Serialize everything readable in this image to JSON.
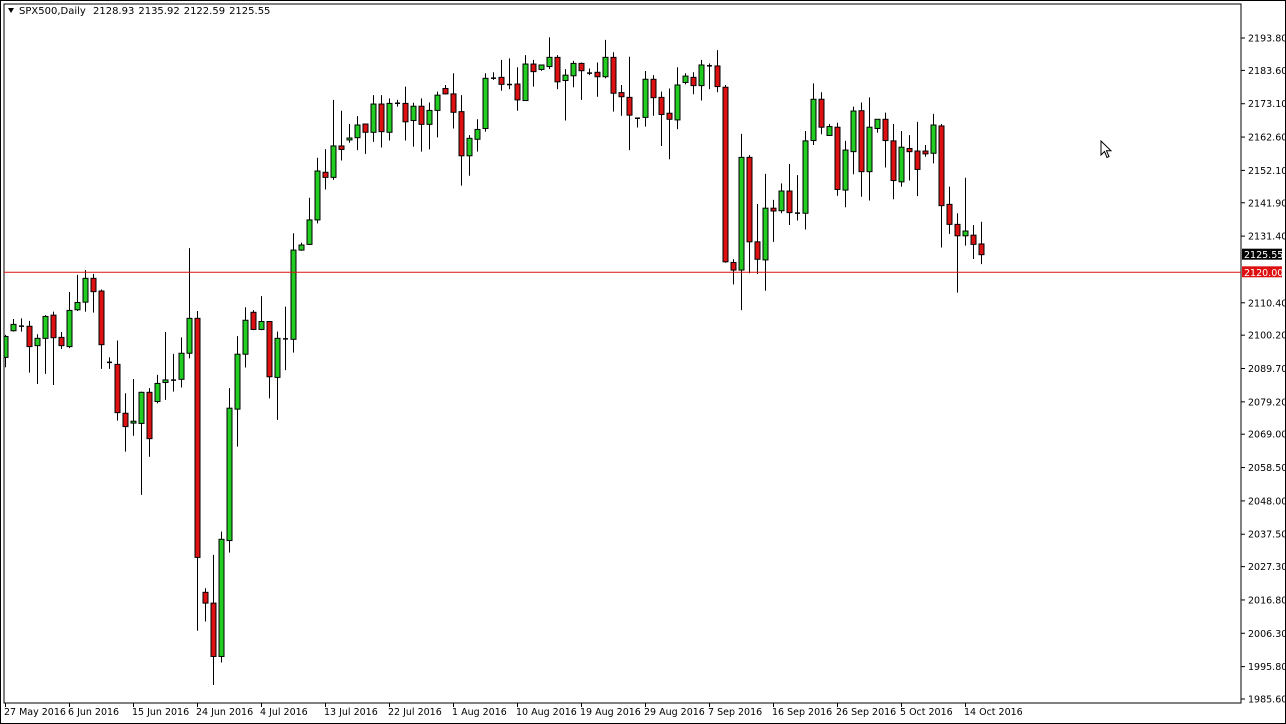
{
  "header": {
    "symbol_timeframe": "SPX500,Daily",
    "open": "2128.93",
    "high": "2135.92",
    "low": "2122.59",
    "close": "2125.55"
  },
  "colors": {
    "bull": "#22cc22",
    "bear": "#dd1111",
    "outline": "#000000",
    "hline": "#dd1111",
    "background": "#ffffff"
  },
  "chart_data": {
    "type": "candlestick",
    "symbol": "SPX500",
    "timeframe": "Daily",
    "ylim": [
      1985.6,
      2193.8
    ],
    "grid": false,
    "y_ticks": [
      "2193.80",
      "2183.60",
      "2173.10",
      "2162.60",
      "2152.10",
      "2141.90",
      "2131.40",
      "2110.40",
      "2100.20",
      "2089.70",
      "2079.20",
      "2069.00",
      "2058.50",
      "2048.00",
      "2037.50",
      "2027.30",
      "2016.80",
      "2006.30",
      "1995.80",
      "1985.60"
    ],
    "x_labels": [
      "27 May 2016",
      "6 Jun 2016",
      "15 Jun 2016",
      "24 Jun 2016",
      "4 Jul 2016",
      "13 Jul 2016",
      "22 Jul 2016",
      "1 Aug 2016",
      "10 Aug 2016",
      "19 Aug 2016",
      "29 Aug 2016",
      "7 Sep 2016",
      "16 Sep 2016",
      "26 Sep 2016",
      "5 Oct 2016",
      "14 Oct 2016"
    ],
    "x_label_every_n_bars": 8,
    "horizontal_line": {
      "value": 2120.0,
      "label": "2120.00"
    },
    "current_price": {
      "value": 2125.55,
      "label": "2125.55"
    },
    "ohlc": [
      [
        2093.2,
        2100.3,
        2090.1,
        2099.8
      ],
      [
        2101.6,
        2105.3,
        2101.3,
        2103.6
      ],
      [
        2103.2,
        2105.5,
        2101.3,
        2103.2
      ],
      [
        2103.0,
        2104.7,
        2088.4,
        2096.6
      ],
      [
        2096.9,
        2100.5,
        2084.8,
        2099.2
      ],
      [
        2099.2,
        2106.5,
        2088.0,
        2106.1
      ],
      [
        2106.5,
        2107.6,
        2084.5,
        2099.4
      ],
      [
        2099.5,
        2101.2,
        2095.9,
        2096.9
      ],
      [
        2096.6,
        2113.8,
        2096.1,
        2108.0
      ],
      [
        2108.2,
        2119.2,
        2107.8,
        2110.5
      ],
      [
        2110.6,
        2120.7,
        2107.6,
        2118.1
      ],
      [
        2118.1,
        2119.5,
        2107.3,
        2113.9
      ],
      [
        2114.1,
        2114.6,
        2089.6,
        2097.2
      ],
      [
        2091.8,
        2093.2,
        2089.6,
        2091.4
      ],
      [
        2091.0,
        2098.5,
        2073.3,
        2075.8
      ],
      [
        2075.6,
        2081.9,
        2063.5,
        2071.4
      ],
      [
        2072.5,
        2086.4,
        2068.5,
        2073.1
      ],
      [
        2072.4,
        2082.4,
        2049.9,
        2082.2
      ],
      [
        2082.2,
        2083.5,
        2061.9,
        2067.6
      ],
      [
        2079.3,
        2087.7,
        2078.7,
        2085.0
      ],
      [
        2085.3,
        2101.2,
        2079.8,
        2086.1
      ],
      [
        2086.2,
        2094.3,
        2082.4,
        2086.2
      ],
      [
        2086.3,
        2099.5,
        2083.7,
        2094.5
      ],
      [
        2094.5,
        2127.6,
        2092.9,
        2105.5
      ],
      [
        2105.5,
        2107.8,
        2007.1,
        2030.2
      ],
      [
        2019.2,
        2020.5,
        2010.0,
        2015.8
      ],
      [
        2015.8,
        2031.0,
        1990.0,
        1999.0
      ],
      [
        1999.0,
        2038.3,
        1997.1,
        2035.9
      ],
      [
        2035.5,
        2083.5,
        2031.7,
        2077.2
      ],
      [
        2076.9,
        2099.9,
        2065.1,
        2094.2
      ],
      [
        2094.2,
        2109.0,
        2090.0,
        2104.9
      ],
      [
        2107.4,
        2108.1,
        2101.8,
        2102.0
      ],
      [
        2102.0,
        2112.5,
        2101.8,
        2104.5
      ],
      [
        2104.5,
        2104.5,
        2080.3,
        2087.1
      ],
      [
        2086.9,
        2101.3,
        2073.5,
        2099.2
      ],
      [
        2099.1,
        2109.2,
        2089.2,
        2099.2
      ],
      [
        2098.9,
        2132.3,
        2094.7,
        2127.0
      ],
      [
        2127.0,
        2129.3,
        2126.8,
        2128.6
      ],
      [
        2128.8,
        2143.5,
        2128.6,
        2136.5
      ],
      [
        2136.5,
        2156.1,
        2135.4,
        2151.9
      ],
      [
        2151.5,
        2158.8,
        2146.1,
        2149.9
      ],
      [
        2149.9,
        2174.3,
        2149.1,
        2159.8
      ],
      [
        2159.8,
        2170.9,
        2155.2,
        2158.7
      ],
      [
        2161.7,
        2166.7,
        2160.8,
        2162.3
      ],
      [
        2162.4,
        2169.2,
        2158.5,
        2166.4
      ],
      [
        2166.7,
        2166.7,
        2157.3,
        2164.1
      ],
      [
        2164.1,
        2175.8,
        2161.1,
        2173.0
      ],
      [
        2173.0,
        2175.8,
        2159.3,
        2164.3
      ],
      [
        2164.1,
        2174.8,
        2161.5,
        2173.2
      ],
      [
        2173.4,
        2174.3,
        2172.2,
        2173.4
      ],
      [
        2173.2,
        2178.5,
        2161.5,
        2167.4
      ],
      [
        2167.8,
        2173.4,
        2159.6,
        2172.3
      ],
      [
        2172.3,
        2174.8,
        2158.0,
        2166.6
      ],
      [
        2166.6,
        2173.5,
        2158.7,
        2171.0
      ],
      [
        2171.0,
        2176.9,
        2162.5,
        2175.8
      ],
      [
        2177.9,
        2179.0,
        2176.0,
        2176.2
      ],
      [
        2176.2,
        2182.7,
        2165.3,
        2170.4
      ],
      [
        2170.6,
        2175.8,
        2147.3,
        2156.7
      ],
      [
        2156.7,
        2163.2,
        2150.4,
        2162.2
      ],
      [
        2161.9,
        2168.2,
        2158.0,
        2165.0
      ],
      [
        2165.3,
        2182.7,
        2164.3,
        2181.1
      ],
      [
        2181.3,
        2183.0,
        2180.6,
        2181.3
      ],
      [
        2181.4,
        2186.9,
        2177.2,
        2179.2
      ],
      [
        2179.3,
        2187.4,
        2177.7,
        2179.3
      ],
      [
        2179.3,
        2184.6,
        2170.9,
        2174.3
      ],
      [
        2174.1,
        2188.4,
        2174.1,
        2185.6
      ],
      [
        2185.6,
        2186.9,
        2178.5,
        2183.2
      ],
      [
        2183.9,
        2185.3,
        2183.5,
        2185.3
      ],
      [
        2184.8,
        2194.0,
        2184.0,
        2187.7
      ],
      [
        2187.7,
        2188.4,
        2177.7,
        2180.0
      ],
      [
        2180.4,
        2184.0,
        2167.8,
        2182.1
      ],
      [
        2181.9,
        2186.6,
        2178.3,
        2185.8
      ],
      [
        2185.8,
        2186.1,
        2174.3,
        2183.5
      ],
      [
        2182.9,
        2184.2,
        2182.1,
        2182.9
      ],
      [
        2183.0,
        2186.1,
        2175.3,
        2181.6
      ],
      [
        2181.6,
        2193.2,
        2181.1,
        2187.7
      ],
      [
        2187.7,
        2189.3,
        2170.6,
        2176.4
      ],
      [
        2176.6,
        2179.0,
        2169.3,
        2175.3
      ],
      [
        2175.1,
        2187.9,
        2158.5,
        2169.5
      ],
      [
        2168.7,
        2168.7,
        2165.6,
        2168.7
      ],
      [
        2168.8,
        2183.4,
        2165.9,
        2180.8
      ],
      [
        2180.8,
        2182.1,
        2169.3,
        2175.0
      ],
      [
        2175.1,
        2176.9,
        2159.8,
        2169.7
      ],
      [
        2170.1,
        2177.9,
        2155.6,
        2168.2
      ],
      [
        2168.0,
        2184.6,
        2165.1,
        2179.0
      ],
      [
        2179.8,
        2182.7,
        2179.2,
        2181.8
      ],
      [
        2181.4,
        2183.0,
        2176.1,
        2178.8
      ],
      [
        2178.8,
        2186.9,
        2174.1,
        2185.3
      ],
      [
        2185.2,
        2185.8,
        2177.7,
        2185.2
      ],
      [
        2185.0,
        2190.0,
        2176.7,
        2178.5
      ],
      [
        2178.3,
        2179.0,
        2123.0,
        2123.3
      ],
      [
        2123.1,
        2124.1,
        2116.2,
        2120.7
      ],
      [
        2120.7,
        2163.6,
        2108.1,
        2156.2
      ],
      [
        2156.2,
        2156.9,
        2119.7,
        2129.6
      ],
      [
        2129.6,
        2141.5,
        2119.5,
        2124.1
      ],
      [
        2123.9,
        2151.0,
        2114.2,
        2140.2
      ],
      [
        2140.2,
        2142.8,
        2129.6,
        2139.3
      ],
      [
        2139.4,
        2148.0,
        2138.6,
        2145.6
      ],
      [
        2145.6,
        2154.1,
        2134.9,
        2138.8
      ],
      [
        2138.8,
        2150.6,
        2136.3,
        2138.8
      ],
      [
        2138.6,
        2164.5,
        2133.5,
        2161.4
      ],
      [
        2161.5,
        2179.5,
        2160.1,
        2174.5
      ],
      [
        2174.5,
        2176.7,
        2163.5,
        2165.7
      ],
      [
        2163.1,
        2166.7,
        2163.1,
        2165.9
      ],
      [
        2165.7,
        2167.1,
        2144.1,
        2146.1
      ],
      [
        2145.9,
        2161.4,
        2140.5,
        2158.5
      ],
      [
        2158.0,
        2172.2,
        2150.9,
        2170.8
      ],
      [
        2170.9,
        2173.5,
        2143.8,
        2151.7
      ],
      [
        2151.7,
        2175.1,
        2142.6,
        2165.7
      ],
      [
        2165.3,
        2168.2,
        2164.0,
        2168.2
      ],
      [
        2168.2,
        2170.3,
        2153.0,
        2161.5
      ],
      [
        2161.4,
        2166.7,
        2143.0,
        2148.9
      ],
      [
        2148.5,
        2164.5,
        2147.0,
        2159.4
      ],
      [
        2159.0,
        2163.2,
        2148.9,
        2158.0
      ],
      [
        2158.2,
        2167.4,
        2144.0,
        2152.4
      ],
      [
        2158.2,
        2160.1,
        2156.4,
        2157.3
      ],
      [
        2157.5,
        2169.9,
        2154.3,
        2166.4
      ],
      [
        2166.1,
        2166.7,
        2127.8,
        2141.0
      ],
      [
        2141.4,
        2147.0,
        2132.1,
        2135.1
      ],
      [
        2135.1,
        2138.6,
        2113.6,
        2131.5
      ],
      [
        2131.5,
        2149.8,
        2128.4,
        2133.0
      ],
      [
        2131.7,
        2134.9,
        2124.2,
        2128.8
      ],
      [
        2128.93,
        2135.92,
        2122.59,
        2125.55
      ]
    ]
  }
}
